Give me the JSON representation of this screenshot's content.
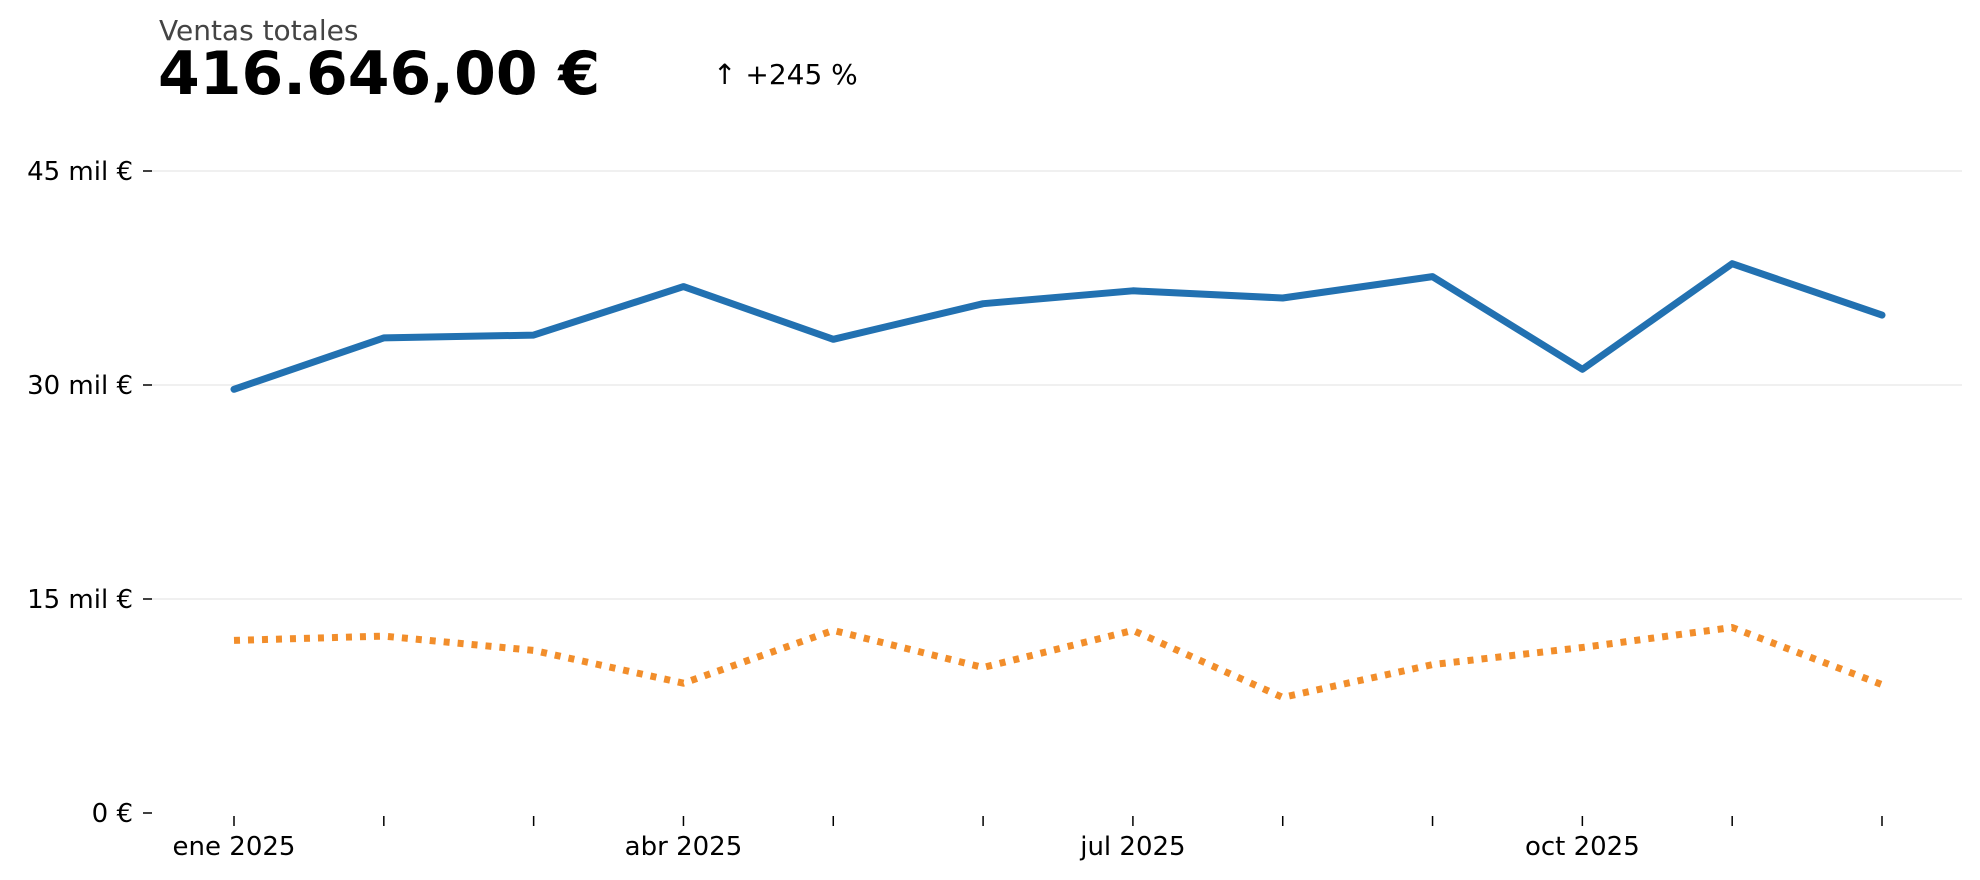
{
  "kpi": {
    "label": "Ventas totales",
    "value": "416.646,00 €",
    "change": "↑ +245 %"
  },
  "chart_data": {
    "type": "line",
    "title": "",
    "xlabel": "",
    "ylabel": "",
    "x": [
      "2025-01",
      "2025-02",
      "2025-03",
      "2025-04",
      "2025-05",
      "2025-06",
      "2025-07",
      "2025-08",
      "2025-09",
      "2025-10",
      "2025-11",
      "2025-12"
    ],
    "xtick_labels": [
      {
        "x": "2025-01",
        "label": "ene 2025"
      },
      {
        "x": "2025-04",
        "label": "abr 2025"
      },
      {
        "x": "2025-07",
        "label": "jul 2025"
      },
      {
        "x": "2025-10",
        "label": "oct 2025"
      }
    ],
    "yticks": [
      {
        "value": 0,
        "label": "0 €"
      },
      {
        "value": 15000,
        "label": "15 mil €"
      },
      {
        "value": 30000,
        "label": "30 mil €"
      },
      {
        "value": 45000,
        "label": "45 mil €"
      }
    ],
    "ylim": [
      0,
      45000
    ],
    "grid": "horizontal",
    "series": [
      {
        "values": [
          29700,
          33300,
          33500,
          36900,
          33200,
          35700,
          36600,
          36100,
          37600,
          31100,
          38500,
          34900
        ],
        "color": "#2271b1",
        "style": "solid"
      },
      {
        "values": [
          12100,
          12400,
          11400,
          9100,
          12800,
          10200,
          12800,
          8100,
          10400,
          11600,
          13000,
          9000
        ],
        "color": "#f28e2b",
        "style": "dotted"
      }
    ]
  }
}
